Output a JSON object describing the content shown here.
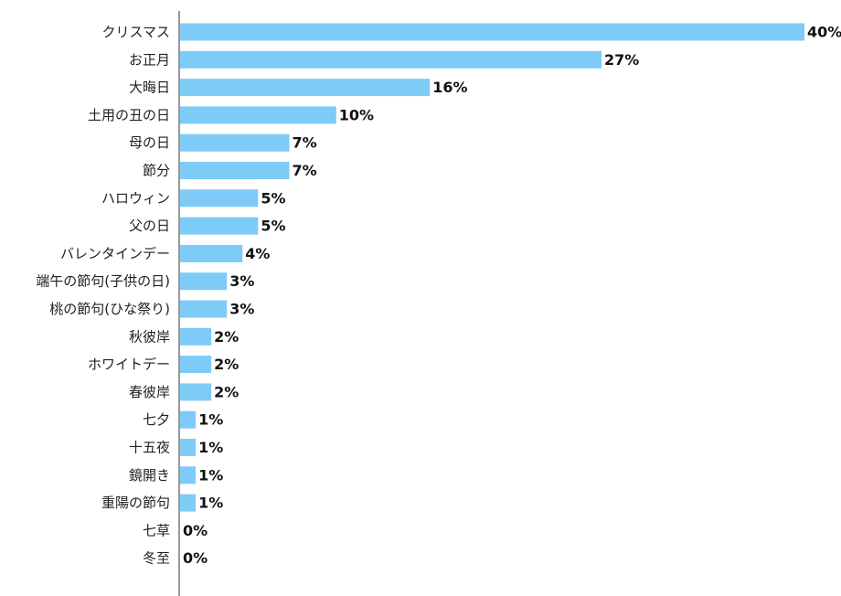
{
  "chart_data": {
    "type": "bar",
    "orientation": "horizontal",
    "categories": [
      "クリスマス",
      "お正月",
      "大晦日",
      "土用の丑の日",
      "母の日",
      "節分",
      "ハロウィン",
      "父の日",
      "バレンタインデー",
      "端午の節句(子供の日)",
      "桃の節句(ひな祭り)",
      "秋彼岸",
      "ホワイトデー",
      "春彼岸",
      "七夕",
      "十五夜",
      "鏡開き",
      "重陽の節句",
      "七草",
      "冬至"
    ],
    "values": [
      40,
      27,
      16,
      10,
      7,
      7,
      5,
      5,
      4,
      3,
      3,
      2,
      2,
      2,
      1,
      1,
      1,
      1,
      0,
      0
    ],
    "value_labels": [
      "40%",
      "27%",
      "16%",
      "10%",
      "7%",
      "7%",
      "5%",
      "5%",
      "4%",
      "3%",
      "3%",
      "2%",
      "2%",
      "2%",
      "1%",
      "1%",
      "1%",
      "1%",
      "0%",
      "0%"
    ],
    "unit": "%",
    "xlim": [
      0,
      40
    ],
    "grid": false,
    "legend": "none",
    "bar_color": "#7ecbf7",
    "axis_color": "#555555"
  }
}
